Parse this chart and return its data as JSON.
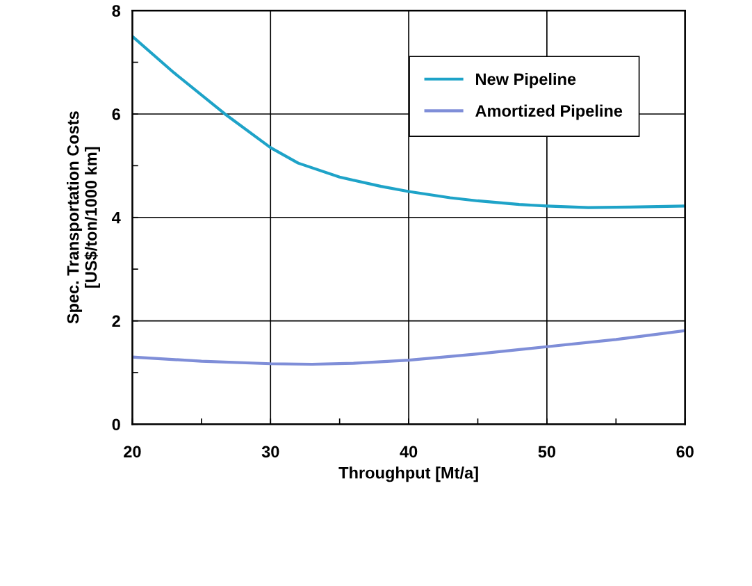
{
  "chart_data": {
    "type": "line",
    "xlabel": "Throughput [Mt/a]",
    "ylabel": "Spec. Transportation Costs\n[US$/ton/1000 km]",
    "xlim": [
      20,
      60
    ],
    "ylim": [
      0,
      8
    ],
    "xticks": [
      20,
      {
        "value": 25,
        "label": null
      },
      30,
      {
        "value": 35,
        "label": null
      },
      40,
      {
        "value": 45,
        "label": null
      },
      50,
      {
        "value": 55,
        "label": null
      },
      60
    ],
    "yticks": [
      0,
      {
        "value": 1,
        "label": null
      },
      2,
      {
        "value": 3,
        "label": null
      },
      4,
      {
        "value": 5,
        "label": null
      },
      6,
      {
        "value": 7,
        "label": null
      },
      8
    ],
    "grid": true,
    "legend": "top right",
    "marker": "none",
    "line_style": "solid",
    "series": [
      {
        "name": "New Pipeline",
        "color": "#1ea3c8",
        "x": [
          20,
          23,
          26.7,
          30,
          32,
          35,
          38,
          40,
          43,
          45,
          48,
          50,
          53,
          56,
          60
        ],
        "values": [
          7.5,
          6.8,
          6.0,
          5.35,
          5.05,
          4.78,
          4.6,
          4.5,
          4.38,
          4.32,
          4.25,
          4.22,
          4.19,
          4.2,
          4.22
        ]
      },
      {
        "name": "Amortized Pipeline",
        "color": "#7f8ed8",
        "x": [
          20,
          25,
          30,
          33,
          36,
          40,
          45,
          50,
          55,
          60
        ],
        "values": [
          1.3,
          1.22,
          1.17,
          1.16,
          1.18,
          1.24,
          1.36,
          1.5,
          1.64,
          1.81
        ]
      }
    ]
  }
}
